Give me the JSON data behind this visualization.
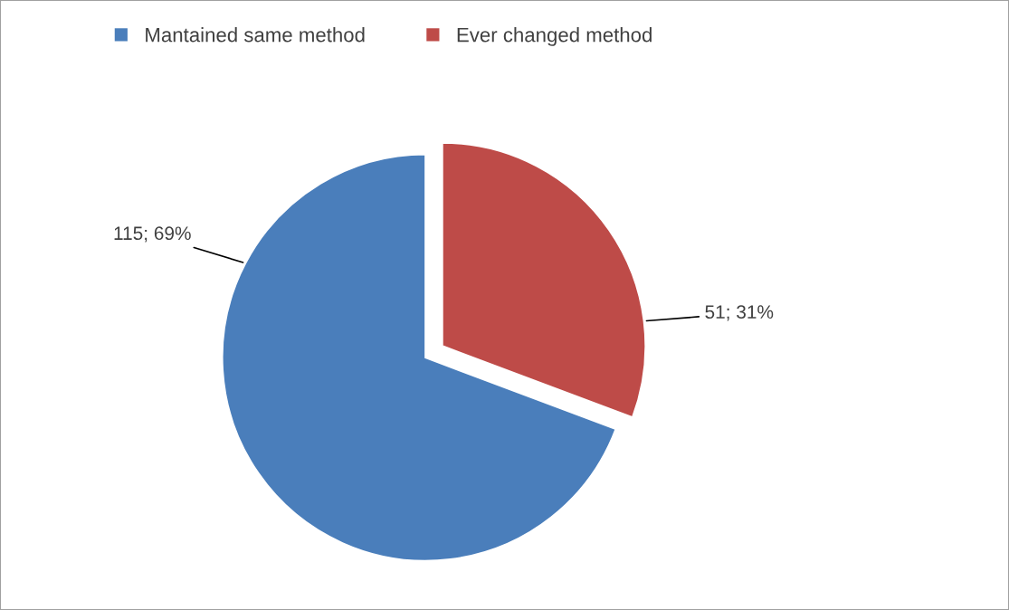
{
  "chart_data": {
    "type": "pie",
    "categories": [
      "Mantained same method",
      "Ever changed method"
    ],
    "values": [
      115,
      51
    ],
    "value_labels": [
      "115; 69%",
      "51; 31%"
    ],
    "colors": [
      "#4a7ebb",
      "#be4b48"
    ],
    "legend": "top"
  }
}
